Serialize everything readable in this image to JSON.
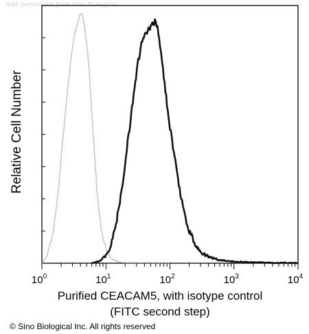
{
  "watermark": "with permission from Sino Biological",
  "copyright": "© Sino Biological Inc. All rights reserved",
  "chart_data": {
    "type": "line",
    "title": "",
    "xlabel_line1": "Purified CEACAM5, with isotype control",
    "xlabel_line2": "(FITC second step)",
    "ylabel": "Relative Cell Number",
    "x_scale": "log",
    "xlim": [
      1,
      10000
    ],
    "x_ticks": [
      {
        "base": "10",
        "exp": "0",
        "value": 1
      },
      {
        "base": "10",
        "exp": "1",
        "value": 10
      },
      {
        "base": "10",
        "exp": "2",
        "value": 100
      },
      {
        "base": "10",
        "exp": "3",
        "value": 1000
      },
      {
        "base": "10",
        "exp": "4",
        "value": 10000
      }
    ],
    "ylim": [
      0,
      1
    ],
    "grid": false,
    "series": [
      {
        "style": "dotted-gray",
        "color": "#8a8a8a",
        "x": [
          1.0,
          1.2,
          1.5,
          1.8,
          2.0,
          2.3,
          2.6,
          2.9,
          3.2,
          3.5,
          3.8,
          4.0,
          4.3,
          4.6,
          5.0,
          5.5,
          6.0,
          6.6,
          7.2,
          8.0,
          9.0,
          10,
          11,
          12,
          14,
          16,
          20,
          30,
          60,
          100
        ],
        "values": [
          0.0,
          0.03,
          0.12,
          0.28,
          0.42,
          0.58,
          0.72,
          0.83,
          0.9,
          0.94,
          0.97,
          0.99,
          0.98,
          0.95,
          0.88,
          0.76,
          0.6,
          0.44,
          0.3,
          0.18,
          0.1,
          0.06,
          0.035,
          0.02,
          0.01,
          0.005,
          0.0,
          0.0,
          0.0,
          0.0
        ]
      },
      {
        "style": "solid-black",
        "color": "#111111",
        "x": [
          6,
          8,
          10,
          12,
          14,
          17,
          20,
          24,
          28,
          32,
          36,
          40,
          45,
          50,
          55,
          60,
          66,
          72,
          80,
          90,
          100,
          115,
          130,
          150,
          170,
          200,
          240,
          300,
          400,
          600,
          1000,
          2000,
          5000,
          10000
        ],
        "values": [
          0.0,
          0.01,
          0.03,
          0.07,
          0.14,
          0.26,
          0.4,
          0.56,
          0.7,
          0.8,
          0.87,
          0.9,
          0.92,
          0.93,
          0.95,
          0.96,
          0.92,
          0.84,
          0.74,
          0.63,
          0.54,
          0.44,
          0.35,
          0.26,
          0.19,
          0.13,
          0.08,
          0.045,
          0.025,
          0.012,
          0.006,
          0.003,
          0.002,
          0.0
        ]
      }
    ]
  }
}
